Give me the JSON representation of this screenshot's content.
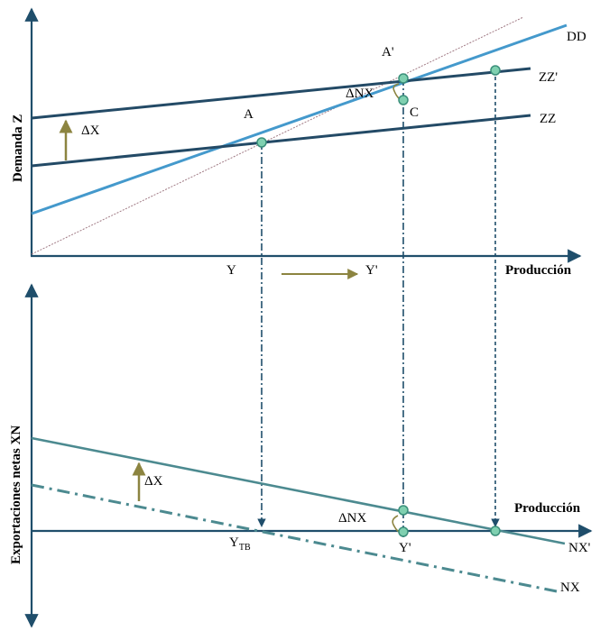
{
  "colors": {
    "axis": "#1f4e6b",
    "zz": "#234a66",
    "dd": "#4499cc",
    "diag": "#a07a84",
    "nx": "#4c8a90",
    "arrow_gold": "#8c8440",
    "dot_fill": "#7fd0b0",
    "dot_stroke": "#3a8f7a",
    "dash": "#1f4e6b"
  },
  "top_panel": {
    "y_axis_label": "Demanda Z",
    "x_axis_label": "Producción",
    "curves": {
      "dd": "DD",
      "zz_shifted": "ZZ'",
      "zz": "ZZ"
    },
    "points": {
      "a": "A",
      "a_prime": "A'",
      "c": "C"
    },
    "delta_x": "ΔX",
    "delta_nx": "ΔNX",
    "y": "Y",
    "y_prime": "Y'"
  },
  "bottom_panel": {
    "y_axis_label": "Exportaciones netas XN",
    "x_axis_label": "Producción",
    "curves": {
      "nx_shifted": "NX'",
      "nx": "NX"
    },
    "delta_x": "ΔX",
    "delta_nx": "ΔNX",
    "y_tb_base": "Y",
    "y_tb_sub": "TB",
    "y_prime": "Y'"
  }
}
